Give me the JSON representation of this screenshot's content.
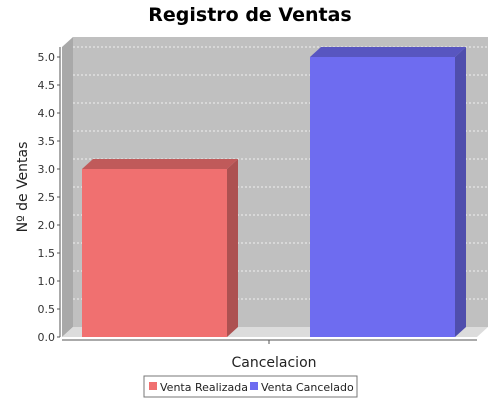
{
  "chart_data": {
    "type": "bar",
    "title": "Registro de Ventas",
    "xlabel": "Cancelacion",
    "ylabel": "Nº de Ventas",
    "ylim": [
      0,
      5.2
    ],
    "yticks": [
      "0.0",
      "0.5",
      "1.0",
      "1.5",
      "2.0",
      "2.5",
      "3.0",
      "3.5",
      "4.0",
      "4.5",
      "5.0"
    ],
    "grid": true,
    "three_d": true,
    "legend_position": "bottom",
    "series": [
      {
        "name": "Venta Realizada",
        "values": [
          3
        ],
        "color": "#f07070"
      },
      {
        "name": "Venta Cancelado",
        "values": [
          5
        ],
        "color": "#6e6cf0"
      }
    ],
    "plot_background": "#c0c0c0"
  }
}
